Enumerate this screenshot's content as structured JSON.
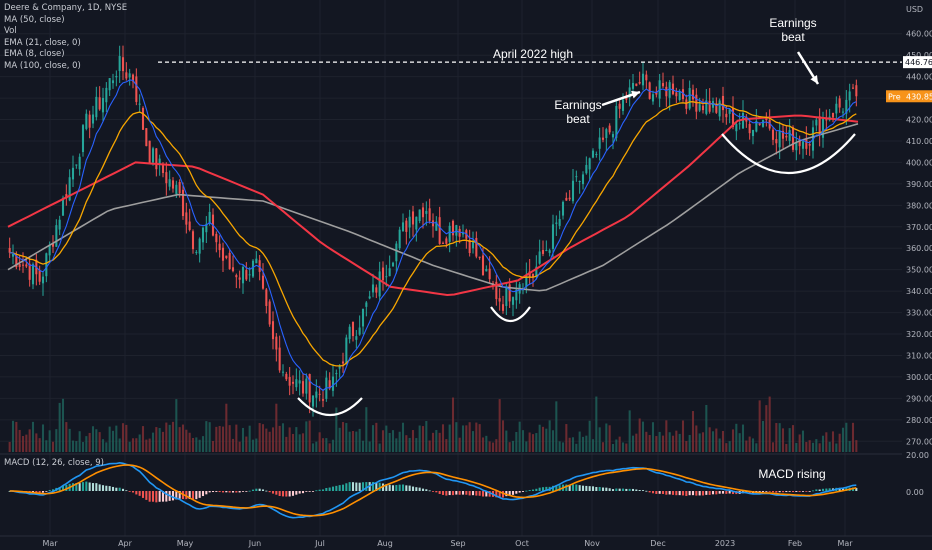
{
  "legend": {
    "title": "Deere & Company, 1D, NYSE",
    "items": [
      "MA (50, close)",
      "Vol",
      "EMA (21, close, 0)",
      "EMA (8, close)",
      "MA (100, close, 0)"
    ],
    "macd": "MACD (12, 26, close, 9)"
  },
  "colors": {
    "background": "#131722",
    "up": "#26a69a",
    "down": "#ef5350",
    "ma50": "#f23645",
    "ema21": "#f7a600",
    "ema8": "#2962ff",
    "ma100": "#9e9e9e",
    "macd_line": "#2196f3",
    "signal_line": "#ff8f00",
    "pre_badge": "#f7931a"
  },
  "chart_data": {
    "type": "candlestick",
    "currency": "USD",
    "ylim": [
      265,
      472
    ],
    "x_labels": [
      "Mar",
      "Apr",
      "May",
      "Jun",
      "Jul",
      "Aug",
      "Sep",
      "Oct",
      "Nov",
      "Dec",
      "2023",
      "Feb",
      "Mar"
    ],
    "y_ticks": [
      270,
      280,
      290,
      300,
      310,
      320,
      330,
      340,
      350,
      360,
      370,
      380,
      390,
      400,
      410,
      420,
      430,
      440,
      450,
      460
    ],
    "price_anchors": [
      [
        "Feb 22",
        358
      ],
      [
        "Mar 1",
        352
      ],
      [
        "Mar 8",
        345
      ],
      [
        "Mar 14",
        370
      ],
      [
        "Mar 22",
        395
      ],
      [
        "Mar 31",
        418
      ],
      [
        "Apr 8",
        430
      ],
      [
        "Apr 14",
        445
      ],
      [
        "Apr 20",
        440
      ],
      [
        "Apr 25",
        405
      ],
      [
        "Apr 29",
        395
      ],
      [
        "May 6",
        385
      ],
      [
        "May 12",
        362
      ],
      [
        "May 18",
        372
      ],
      [
        "May 24",
        352
      ],
      [
        "Jun 1",
        348
      ],
      [
        "Jun 8",
        352
      ],
      [
        "Jun 14",
        318
      ],
      [
        "Jun 22",
        300
      ],
      [
        "Jun 30",
        295
      ],
      [
        "Jul 8",
        292
      ],
      [
        "Jul 15",
        296
      ],
      [
        "Jul 22",
        318
      ],
      [
        "Jul 29",
        330
      ],
      [
        "Aug 5",
        345
      ],
      [
        "Aug 12",
        360
      ],
      [
        "Aug 19",
        375
      ],
      [
        "Aug 25",
        380
      ],
      [
        "Sep 1",
        365
      ],
      [
        "Sep 9",
        372
      ],
      [
        "Sep 16",
        362
      ],
      [
        "Sep 23",
        345
      ],
      [
        "Sep 28",
        335
      ],
      [
        "Oct 6",
        345
      ],
      [
        "Oct 13",
        348
      ],
      [
        "Oct 21",
        362
      ],
      [
        "Oct 28",
        378
      ],
      [
        "Nov 4",
        392
      ],
      [
        "Nov 10",
        402
      ],
      [
        "Nov 17",
        415
      ],
      [
        "Nov 23",
        430
      ],
      [
        "Dec 1",
        438
      ],
      [
        "Dec 8",
        432
      ],
      [
        "Dec 15",
        436
      ],
      [
        "Dec 22",
        430
      ],
      [
        "Dec 30",
        428
      ],
      [
        "Jan 6",
        425
      ],
      [
        "Jan 13",
        420
      ],
      [
        "Jan 20",
        418
      ],
      [
        "Jan 27",
        421
      ],
      [
        "Feb 3",
        412
      ],
      [
        "Feb 10",
        410
      ],
      [
        "Feb 17",
        412
      ],
      [
        "Feb 22",
        422
      ],
      [
        "Mar 1",
        426
      ],
      [
        "Mar 3",
        431
      ]
    ],
    "ma50": [
      [
        0,
        370
      ],
      [
        0.1,
        390
      ],
      [
        0.15,
        400
      ],
      [
        0.22,
        398
      ],
      [
        0.3,
        385
      ],
      [
        0.37,
        362
      ],
      [
        0.45,
        342
      ],
      [
        0.52,
        338
      ],
      [
        0.6,
        345
      ],
      [
        0.66,
        360
      ],
      [
        0.73,
        375
      ],
      [
        0.8,
        398
      ],
      [
        0.86,
        420
      ],
      [
        0.93,
        422
      ],
      [
        1,
        419
      ]
    ],
    "ma100": [
      [
        0,
        350
      ],
      [
        0.12,
        378
      ],
      [
        0.2,
        385
      ],
      [
        0.3,
        382
      ],
      [
        0.4,
        368
      ],
      [
        0.5,
        352
      ],
      [
        0.58,
        342
      ],
      [
        0.63,
        340
      ],
      [
        0.7,
        352
      ],
      [
        0.78,
        372
      ],
      [
        0.86,
        395
      ],
      [
        0.93,
        410
      ],
      [
        1,
        418
      ]
    ],
    "volume_relative": "shown as bars along bottom of price pane",
    "current_price": 430.85,
    "current_price_label": "430.85",
    "current_price_tag": "Pre",
    "april_high": 446.76,
    "april_high_label": "446.76",
    "macd": {
      "range_labels": [
        "20.00",
        "0.00"
      ]
    },
    "annotations": {
      "april_high": "April 2022 high",
      "earnings_beat_1": [
        "Earnings",
        "beat"
      ],
      "earnings_beat_2": [
        "Earnings",
        "beat"
      ],
      "macd_rising": "MACD rising"
    }
  }
}
